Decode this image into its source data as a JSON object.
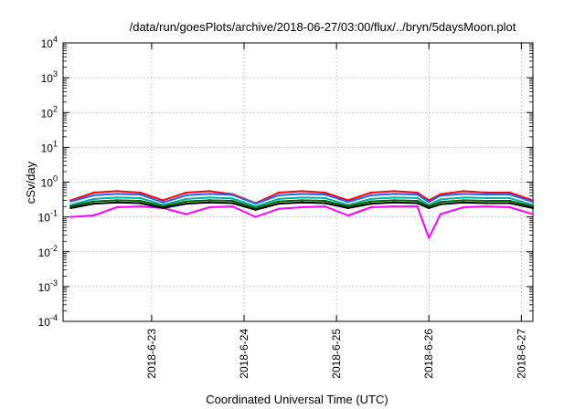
{
  "chart_data": {
    "type": "line",
    "title": "/data/run/goesPlots/archive/2018-06-27/03:00/flux/../bryn/5daysMoon.plot",
    "xlabel": "Coordinated Universal Time (UTC)",
    "ylabel": "cSv/day",
    "yscale": "log",
    "ylim": [
      0.0001,
      10000
    ],
    "yticks": [
      {
        "base": "10",
        "exp": "-4"
      },
      {
        "base": "10",
        "exp": "-3"
      },
      {
        "base": "10",
        "exp": "-2"
      },
      {
        "base": "10",
        "exp": "-1"
      },
      {
        "base": "10",
        "exp": "0"
      },
      {
        "base": "10",
        "exp": "1"
      },
      {
        "base": "10",
        "exp": "2"
      },
      {
        "base": "10",
        "exp": "3"
      },
      {
        "base": "10",
        "exp": "4"
      }
    ],
    "xlim": [
      "2018-06-22 01:00",
      "2018-06-27 03:00"
    ],
    "xticks": [
      "2018-6-23",
      "2018-6-24",
      "2018-6-25",
      "2018-6-26",
      "2018-6-27"
    ],
    "grid": true,
    "legend": "none",
    "series": [
      {
        "color": "#ff00ff",
        "x": [
          "2018-06-22 03:00",
          "2018-06-22 09:00",
          "2018-06-22 15:00",
          "2018-06-22 21:00",
          "2018-06-23 03:00",
          "2018-06-23 09:00",
          "2018-06-23 15:00",
          "2018-06-23 21:00",
          "2018-06-24 03:00",
          "2018-06-24 09:00",
          "2018-06-24 15:00",
          "2018-06-24 21:00",
          "2018-06-25 03:00",
          "2018-06-25 09:00",
          "2018-06-25 15:00",
          "2018-06-25 21:00",
          "2018-06-26 00:00",
          "2018-06-26 03:00",
          "2018-06-26 09:00",
          "2018-06-26 15:00",
          "2018-06-26 21:00",
          "2018-06-27 03:00"
        ],
        "values": [
          0.1,
          0.11,
          0.19,
          0.2,
          0.18,
          0.12,
          0.19,
          0.2,
          0.1,
          0.17,
          0.19,
          0.2,
          0.11,
          0.19,
          0.2,
          0.2,
          0.025,
          0.12,
          0.19,
          0.2,
          0.19,
          0.12
        ]
      },
      {
        "color": "#ff0000",
        "x": [
          "2018-06-22 03:00",
          "2018-06-22 09:00",
          "2018-06-22 15:00",
          "2018-06-22 21:00",
          "2018-06-23 03:00",
          "2018-06-23 09:00",
          "2018-06-23 15:00",
          "2018-06-23 21:00",
          "2018-06-24 03:00",
          "2018-06-24 09:00",
          "2018-06-24 15:00",
          "2018-06-24 21:00",
          "2018-06-25 03:00",
          "2018-06-25 09:00",
          "2018-06-25 15:00",
          "2018-06-25 21:00",
          "2018-06-26 00:00",
          "2018-06-26 03:00",
          "2018-06-26 09:00",
          "2018-06-26 15:00",
          "2018-06-26 21:00",
          "2018-06-27 03:00"
        ],
        "values": [
          0.3,
          0.5,
          0.55,
          0.5,
          0.3,
          0.5,
          0.55,
          0.45,
          0.25,
          0.5,
          0.55,
          0.5,
          0.3,
          0.5,
          0.55,
          0.5,
          0.3,
          0.45,
          0.55,
          0.5,
          0.5,
          0.3
        ]
      },
      {
        "color": "#00b0a0",
        "x": [
          "2018-06-22 03:00",
          "2018-06-22 09:00",
          "2018-06-22 15:00",
          "2018-06-22 21:00",
          "2018-06-23 03:00",
          "2018-06-23 09:00",
          "2018-06-23 15:00",
          "2018-06-23 21:00",
          "2018-06-24 03:00",
          "2018-06-24 09:00",
          "2018-06-24 15:00",
          "2018-06-24 21:00",
          "2018-06-25 03:00",
          "2018-06-25 09:00",
          "2018-06-25 15:00",
          "2018-06-25 21:00",
          "2018-06-26 00:00",
          "2018-06-26 03:00",
          "2018-06-26 09:00",
          "2018-06-26 15:00",
          "2018-06-26 21:00",
          "2018-06-27 03:00"
        ],
        "values": [
          0.22,
          0.33,
          0.36,
          0.35,
          0.22,
          0.33,
          0.36,
          0.34,
          0.2,
          0.33,
          0.36,
          0.35,
          0.22,
          0.33,
          0.36,
          0.35,
          0.22,
          0.32,
          0.36,
          0.35,
          0.35,
          0.22
        ]
      },
      {
        "color": "#006400",
        "x": [
          "2018-06-22 03:00",
          "2018-06-22 09:00",
          "2018-06-22 15:00",
          "2018-06-22 21:00",
          "2018-06-23 03:00",
          "2018-06-23 09:00",
          "2018-06-23 15:00",
          "2018-06-23 21:00",
          "2018-06-24 03:00",
          "2018-06-24 09:00",
          "2018-06-24 15:00",
          "2018-06-24 21:00",
          "2018-06-25 03:00",
          "2018-06-25 09:00",
          "2018-06-25 15:00",
          "2018-06-25 21:00",
          "2018-06-26 00:00",
          "2018-06-26 03:00",
          "2018-06-26 09:00",
          "2018-06-26 15:00",
          "2018-06-26 21:00",
          "2018-06-27 03:00"
        ],
        "values": [
          0.2,
          0.28,
          0.3,
          0.29,
          0.2,
          0.28,
          0.3,
          0.29,
          0.18,
          0.28,
          0.3,
          0.29,
          0.2,
          0.28,
          0.3,
          0.29,
          0.2,
          0.27,
          0.3,
          0.29,
          0.29,
          0.2
        ]
      },
      {
        "color": "#000000",
        "x": [
          "2018-06-22 03:00",
          "2018-06-22 09:00",
          "2018-06-22 15:00",
          "2018-06-22 21:00",
          "2018-06-23 03:00",
          "2018-06-23 09:00",
          "2018-06-23 15:00",
          "2018-06-23 21:00",
          "2018-06-24 03:00",
          "2018-06-24 09:00",
          "2018-06-24 15:00",
          "2018-06-24 21:00",
          "2018-06-25 03:00",
          "2018-06-25 09:00",
          "2018-06-25 15:00",
          "2018-06-25 21:00",
          "2018-06-26 00:00",
          "2018-06-26 03:00",
          "2018-06-26 09:00",
          "2018-06-26 15:00",
          "2018-06-26 21:00",
          "2018-06-27 03:00"
        ],
        "values": [
          0.18,
          0.24,
          0.26,
          0.25,
          0.18,
          0.24,
          0.26,
          0.25,
          0.16,
          0.24,
          0.26,
          0.25,
          0.18,
          0.24,
          0.26,
          0.25,
          0.18,
          0.23,
          0.26,
          0.25,
          0.25,
          0.18
        ]
      },
      {
        "color": "#1e64ff",
        "x": [
          "2018-06-22 03:00",
          "2018-06-22 09:00",
          "2018-06-22 15:00",
          "2018-06-22 21:00",
          "2018-06-23 03:00",
          "2018-06-23 09:00",
          "2018-06-23 15:00",
          "2018-06-23 21:00",
          "2018-06-24 03:00",
          "2018-06-24 09:00",
          "2018-06-24 15:00",
          "2018-06-24 21:00",
          "2018-06-25 03:00",
          "2018-06-25 09:00",
          "2018-06-25 15:00",
          "2018-06-25 21:00",
          "2018-06-26 00:00",
          "2018-06-26 03:00",
          "2018-06-26 09:00",
          "2018-06-26 15:00",
          "2018-06-26 21:00",
          "2018-06-27 03:00"
        ],
        "values": [
          0.28,
          0.42,
          0.46,
          0.44,
          0.26,
          0.42,
          0.46,
          0.43,
          0.24,
          0.42,
          0.46,
          0.44,
          0.27,
          0.42,
          0.46,
          0.44,
          0.27,
          0.41,
          0.46,
          0.44,
          0.44,
          0.27
        ]
      }
    ]
  }
}
